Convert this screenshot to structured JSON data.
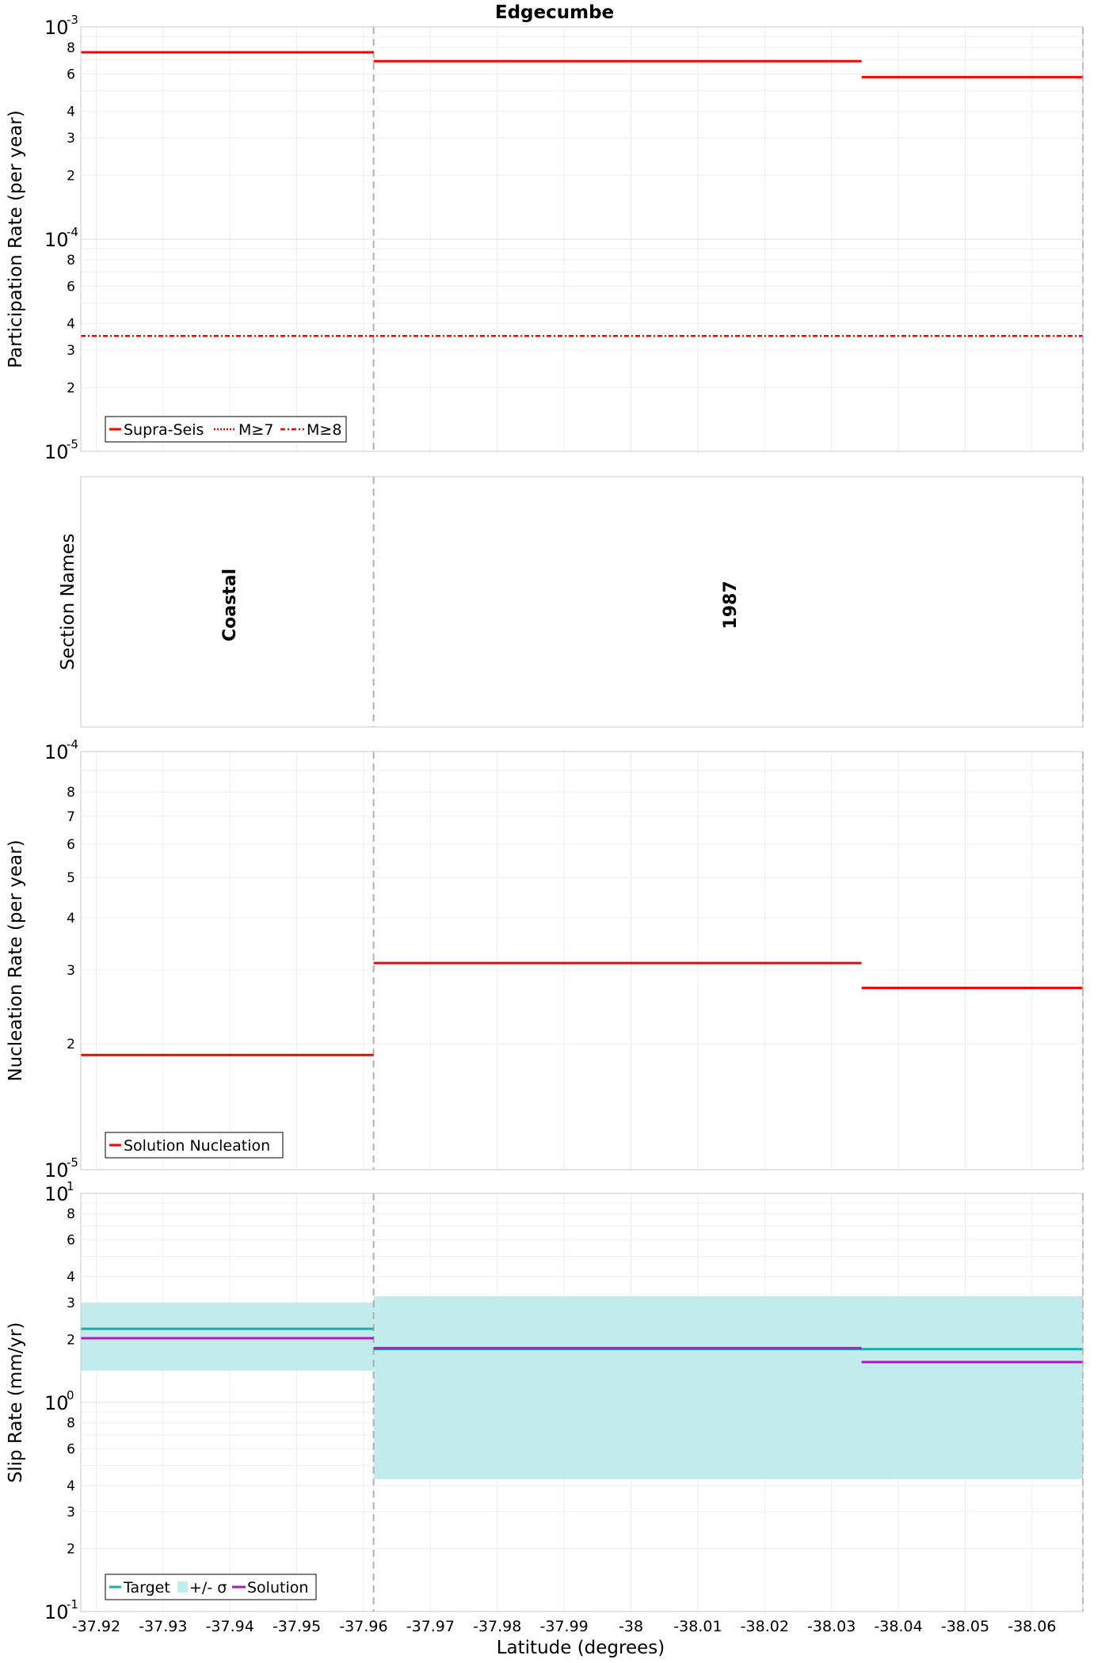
{
  "figure_title": "Edgecumbe",
  "x_axis": {
    "label": "Latitude (degrees)",
    "range": [
      -37.9177,
      -38.0676
    ],
    "ticks": [
      -37.92,
      -37.93,
      -37.94,
      -37.95,
      -37.96,
      -37.97,
      -37.98,
      -37.99,
      -38,
      -38.01,
      -38.02,
      -38.03,
      -38.04,
      -38.05,
      -38.06
    ],
    "tick_labels": [
      "-37.92",
      "-37.93",
      "-37.94",
      "-37.95",
      "-37.96",
      "-37.97",
      "-37.98",
      "-37.99",
      "-38",
      "-38.01",
      "-38.02",
      "-38.03",
      "-38.04",
      "-38.05",
      "-38.06"
    ]
  },
  "section_boundaries": [
    -37.9615,
    -38.0676
  ],
  "colors": {
    "solution_red": "#ff0000",
    "target": "#1aadad",
    "sigma_band": "#c2ecec",
    "solution_purple": "#b018c0",
    "boundary": "#b0b0b0"
  },
  "chart_data": [
    {
      "type": "line",
      "panel": "participation",
      "title": "Edgecumbe",
      "xlabel": "",
      "ylabel": "Participation Rate (per year)",
      "yscale": "log",
      "ylim": [
        1e-05,
        0.001
      ],
      "decade_labels": [
        {
          "value": 0.001,
          "base": "10",
          "exp": "-3"
        },
        {
          "value": 0.0001,
          "base": "10",
          "exp": "-4"
        },
        {
          "value": 1e-05,
          "base": "10",
          "exp": "-5"
        }
      ],
      "minor_labels": [
        8,
        6,
        4,
        3,
        2
      ],
      "series": [
        {
          "name": "Supra-Seis",
          "style": "solid",
          "segments": [
            {
              "x": [
                -37.9177,
                -37.9615
              ],
              "y": 0.00076
            },
            {
              "x": [
                -37.9615,
                -38.0345
              ],
              "y": 0.00069
            },
            {
              "x": [
                -38.0345,
                -38.0676
              ],
              "y": 0.00058
            }
          ]
        },
        {
          "name": "M≥7",
          "style": "dotted",
          "segments": [
            {
              "x": [
                -37.9177,
                -37.9615
              ],
              "y": 0.00076
            }
          ]
        },
        {
          "name": "M≥8",
          "style": "dashdot",
          "segments": [
            {
              "x": [
                -37.9177,
                -38.0676
              ],
              "y": 3.5e-05
            }
          ]
        }
      ],
      "legend": {
        "position": "bottom-left",
        "entries": [
          "Supra-Seis",
          "M≥7",
          "M≥8"
        ]
      }
    },
    {
      "type": "table",
      "panel": "section_names",
      "ylabel": "Section Names",
      "sections": [
        {
          "name": "Coastal",
          "x": [
            -37.9177,
            -37.9615
          ]
        },
        {
          "name": "1987",
          "x": [
            -37.9615,
            -38.0676
          ]
        }
      ]
    },
    {
      "type": "line",
      "panel": "nucleation",
      "ylabel": "Nucleation Rate (per year)",
      "yscale": "log",
      "ylim": [
        1e-05,
        0.0001
      ],
      "decade_labels": [
        {
          "value": 0.0001,
          "base": "10",
          "exp": "-4"
        },
        {
          "value": 1e-05,
          "base": "10",
          "exp": "-5"
        }
      ],
      "minor_labels": [
        8,
        7,
        6,
        5,
        4,
        3,
        2
      ],
      "series": [
        {
          "name": "Solution Nucleation",
          "style": "solid",
          "segments": [
            {
              "x": [
                -37.9177,
                -37.9615
              ],
              "y": 1.88e-05
            },
            {
              "x": [
                -37.9615,
                -38.0345
              ],
              "y": 3.12e-05
            },
            {
              "x": [
                -38.0345,
                -38.0676
              ],
              "y": 2.72e-05
            }
          ]
        }
      ],
      "legend": {
        "position": "bottom-left",
        "entries": [
          "Solution Nucleation"
        ]
      }
    },
    {
      "type": "line",
      "panel": "slip_rate",
      "ylabel": "Slip Rate (mm/yr)",
      "xlabel": "Latitude (degrees)",
      "yscale": "log",
      "ylim": [
        0.1,
        10
      ],
      "decade_labels": [
        {
          "value": 10,
          "base": "10",
          "exp": "1"
        },
        {
          "value": 1,
          "base": "10",
          "exp": "0"
        },
        {
          "value": 0.1,
          "base": "10",
          "exp": "-1"
        }
      ],
      "minor_labels": [
        8,
        6,
        4,
        3,
        2
      ],
      "bands": [
        {
          "name": "+/- σ",
          "segments": [
            {
              "x": [
                -37.9177,
                -37.9615
              ],
              "y_low": 1.42,
              "y_high": 3.0
            },
            {
              "x": [
                -37.9615,
                -38.0676
              ],
              "y_low": 0.43,
              "y_high": 3.22
            }
          ]
        }
      ],
      "series": [
        {
          "name": "Target",
          "color": "#1aadad",
          "segments": [
            {
              "x": [
                -37.9177,
                -37.9615
              ],
              "y": 2.25
            },
            {
              "x": [
                -37.9615,
                -38.0676
              ],
              "y": 1.8
            }
          ]
        },
        {
          "name": "Solution",
          "color": "#b018c0",
          "segments": [
            {
              "x": [
                -37.9177,
                -37.9615
              ],
              "y": 2.03
            },
            {
              "x": [
                -37.9615,
                -38.0345
              ],
              "y": 1.82
            },
            {
              "x": [
                -38.0345,
                -38.0676
              ],
              "y": 1.56
            }
          ]
        }
      ],
      "legend": {
        "position": "bottom-left",
        "entries": [
          "Target",
          "+/- σ",
          "Solution"
        ]
      }
    }
  ]
}
